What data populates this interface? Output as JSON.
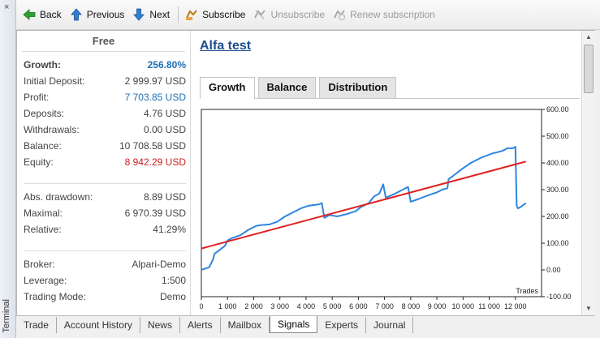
{
  "window": {
    "side_label": "Terminal",
    "close_glyph": "×"
  },
  "toolbar": {
    "back": "Back",
    "previous": "Previous",
    "next": "Next",
    "subscribe": "Subscribe",
    "unsubscribe": "Unsubscribe",
    "renew": "Renew subscription"
  },
  "stats": {
    "plan": "Free",
    "growth_label": "Growth:",
    "growth_value": "256.80%",
    "initial_deposit_label": "Initial Deposit:",
    "initial_deposit_value": "2 999.97 USD",
    "profit_label": "Profit:",
    "profit_value": "7 703.85 USD",
    "deposits_label": "Deposits:",
    "deposits_value": "4.76 USD",
    "withdrawals_label": "Withdrawals:",
    "withdrawals_value": "0.00 USD",
    "balance_label": "Balance:",
    "balance_value": "10 708.58 USD",
    "equity_label": "Equity:",
    "equity_value": "8 942.29 USD",
    "abs_drawdown_label": "Abs. drawdown:",
    "abs_drawdown_value": "8.89 USD",
    "maximal_label": "Maximal:",
    "maximal_value": "6 970.39 USD",
    "relative_label": "Relative:",
    "relative_value": "41.29%",
    "broker_label": "Broker:",
    "broker_value": "Alpari-Demo",
    "leverage_label": "Leverage:",
    "leverage_value": "1:500",
    "trading_mode_label": "Trading Mode:",
    "trading_mode_value": "Demo"
  },
  "signal": {
    "title": "Alfa test"
  },
  "tabs": [
    "Growth",
    "Balance",
    "Distribution"
  ],
  "bottom_tabs": [
    "Trade",
    "Account History",
    "News",
    "Alerts",
    "Mailbox",
    "Signals",
    "Experts",
    "Journal"
  ],
  "colors": {
    "growth_line": "#2e86de",
    "trend_line": "#e02020",
    "link": "#1f4f8c",
    "value_blue": "#1b6fb5",
    "value_red": "#c81e1e"
  },
  "chart_data": {
    "type": "line",
    "xlabel": "Trades",
    "xlim": [
      0,
      13000
    ],
    "ylim": [
      -100,
      600
    ],
    "x_ticks": [
      "0",
      "1 000",
      "2 000",
      "3 000",
      "4 000",
      "5 000",
      "6 000",
      "7 000",
      "8 000",
      "9 000",
      "10 000",
      "11 000",
      "12 000"
    ],
    "y_ticks": [
      "600.00",
      "500.00",
      "400.00",
      "300.00",
      "200.00",
      "100.00",
      "0.00",
      "-100.00"
    ],
    "series": [
      {
        "role": "growth",
        "points": [
          [
            0,
            0
          ],
          [
            300,
            10
          ],
          [
            450,
            40
          ],
          [
            500,
            60
          ],
          [
            700,
            75
          ],
          [
            900,
            90
          ],
          [
            1000,
            110
          ],
          [
            1200,
            120
          ],
          [
            1500,
            130
          ],
          [
            1800,
            150
          ],
          [
            2100,
            165
          ],
          [
            2300,
            168
          ],
          [
            2600,
            170
          ],
          [
            2900,
            180
          ],
          [
            3200,
            200
          ],
          [
            3500,
            215
          ],
          [
            3800,
            230
          ],
          [
            4100,
            240
          ],
          [
            4500,
            245
          ],
          [
            4600,
            250
          ],
          [
            4700,
            195
          ],
          [
            4900,
            205
          ],
          [
            5200,
            200
          ],
          [
            5600,
            210
          ],
          [
            5900,
            220
          ],
          [
            6100,
            235
          ],
          [
            6400,
            250
          ],
          [
            6600,
            275
          ],
          [
            6800,
            285
          ],
          [
            6950,
            320
          ],
          [
            7050,
            270
          ],
          [
            7400,
            285
          ],
          [
            7700,
            300
          ],
          [
            7800,
            305
          ],
          [
            7900,
            310
          ],
          [
            8000,
            255
          ],
          [
            8300,
            265
          ],
          [
            8700,
            280
          ],
          [
            9000,
            290
          ],
          [
            9200,
            300
          ],
          [
            9400,
            305
          ],
          [
            9450,
            340
          ],
          [
            9600,
            350
          ],
          [
            10000,
            380
          ],
          [
            10300,
            400
          ],
          [
            10700,
            420
          ],
          [
            11100,
            435
          ],
          [
            11500,
            445
          ],
          [
            11700,
            455
          ],
          [
            11900,
            455
          ],
          [
            12000,
            460
          ],
          [
            12050,
            240
          ],
          [
            12100,
            230
          ],
          [
            12200,
            235
          ],
          [
            12400,
            250
          ]
        ]
      },
      {
        "role": "trend",
        "points": [
          [
            0,
            80
          ],
          [
            12400,
            405
          ]
        ]
      }
    ]
  }
}
